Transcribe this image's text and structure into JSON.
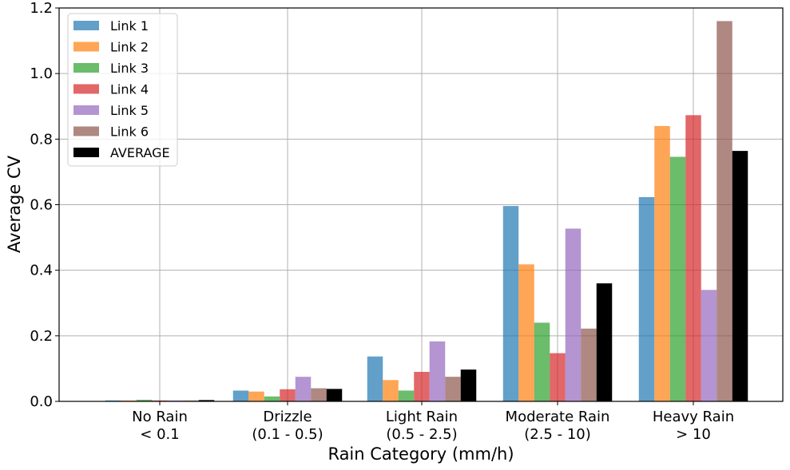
{
  "chart_data": {
    "type": "bar",
    "xlabel": "Rain Category (mm/h)",
    "ylabel": "Average CV",
    "ylim": [
      0,
      1.2
    ],
    "yticks": [
      "0.0",
      "0.2",
      "0.4",
      "0.6",
      "0.8",
      "1.0",
      "1.2"
    ],
    "grid": true,
    "legend_position": "top-left",
    "categories": [
      [
        "No Rain",
        "< 0.1"
      ],
      [
        "Drizzle",
        "(0.1 - 0.5)"
      ],
      [
        "Light Rain",
        "(0.5 - 2.5)"
      ],
      [
        "Moderate Rain",
        "(2.5 - 10)"
      ],
      [
        "Heavy Rain",
        "> 10"
      ]
    ],
    "series": [
      {
        "name": "Link 1",
        "color": "#1f77b4",
        "opacity": 0.7,
        "values": [
          0.003,
          0.033,
          0.137,
          0.596,
          0.623
        ]
      },
      {
        "name": "Link 2",
        "color": "#ff7f0e",
        "opacity": 0.7,
        "values": [
          0.003,
          0.03,
          0.065,
          0.418,
          0.84
        ]
      },
      {
        "name": "Link 3",
        "color": "#2ca02c",
        "opacity": 0.7,
        "values": [
          0.005,
          0.015,
          0.033,
          0.24,
          0.746
        ]
      },
      {
        "name": "Link 4",
        "color": "#d62728",
        "opacity": 0.7,
        "values": [
          0.003,
          0.037,
          0.09,
          0.147,
          0.873
        ]
      },
      {
        "name": "Link 5",
        "color": "#9467bd",
        "opacity": 0.7,
        "values": [
          0.003,
          0.075,
          0.183,
          0.527,
          0.34
        ]
      },
      {
        "name": "Link 6",
        "color": "#8c564b",
        "opacity": 0.7,
        "values": [
          0.003,
          0.04,
          0.075,
          0.222,
          1.16
        ]
      },
      {
        "name": "AVERAGE",
        "color": "#000000",
        "opacity": 1.0,
        "values": [
          0.004,
          0.038,
          0.097,
          0.36,
          0.764
        ]
      }
    ]
  }
}
